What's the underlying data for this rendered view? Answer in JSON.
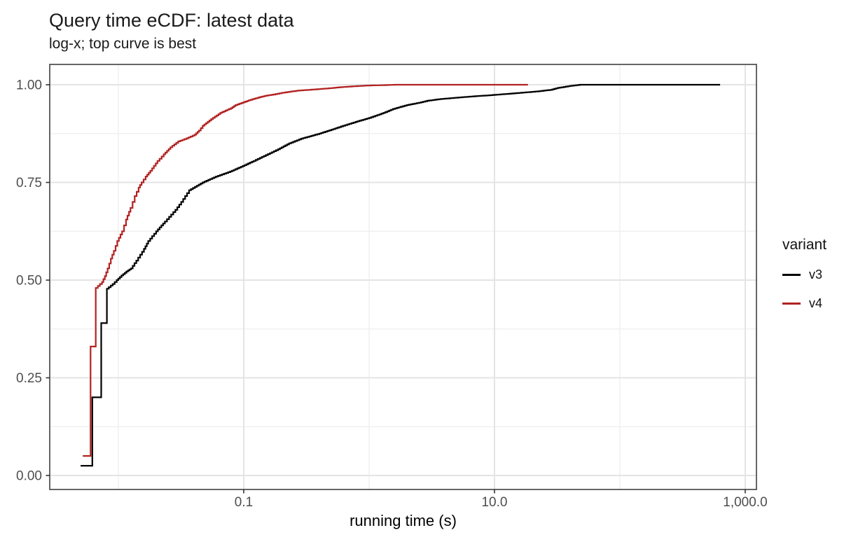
{
  "chart_data": {
    "type": "line",
    "subtype": "ecdf-step",
    "title": "Query time eCDF: latest data",
    "subtitle": "log-x; top curve is best",
    "xlabel": "running time (s)",
    "ylabel": "",
    "x_scale": "log10",
    "xlim": [
      0.002835,
      1228.9
    ],
    "ylim": [
      -0.0358,
      1.052
    ],
    "grid": "on",
    "x_ticks": [
      {
        "value": 0.1,
        "label": "0.1"
      },
      {
        "value": 10,
        "label": "10.0"
      },
      {
        "value": 1000,
        "label": "1,000.0"
      }
    ],
    "x_minor_gridlines": [
      0.01,
      1,
      100
    ],
    "y_ticks": [
      {
        "value": 0.0,
        "label": "0.00"
      },
      {
        "value": 0.25,
        "label": "0.25"
      },
      {
        "value": 0.5,
        "label": "0.50"
      },
      {
        "value": 0.75,
        "label": "0.75"
      },
      {
        "value": 1.0,
        "label": "1.00"
      }
    ],
    "y_minor_gridlines": [
      0.125,
      0.375,
      0.625,
      0.875
    ],
    "legend": {
      "title": "variant",
      "position": "right"
    },
    "series": [
      {
        "name": "v3",
        "color": "#000000",
        "points": [
          [
            0.005,
            0.025
          ],
          [
            0.0062,
            0.025
          ],
          [
            0.0062,
            0.2
          ],
          [
            0.0073,
            0.2
          ],
          [
            0.0073,
            0.39
          ],
          [
            0.0081,
            0.39
          ],
          [
            0.0081,
            0.478
          ],
          [
            0.009,
            0.49
          ],
          [
            0.0097,
            0.5
          ],
          [
            0.0106,
            0.512
          ],
          [
            0.0116,
            0.522
          ],
          [
            0.0126,
            0.53
          ],
          [
            0.0139,
            0.55
          ],
          [
            0.016,
            0.58
          ],
          [
            0.0173,
            0.6
          ],
          [
            0.02,
            0.625
          ],
          [
            0.0235,
            0.65
          ],
          [
            0.0285,
            0.68
          ],
          [
            0.0317,
            0.7
          ],
          [
            0.0366,
            0.73
          ],
          [
            0.047,
            0.75
          ],
          [
            0.06,
            0.765
          ],
          [
            0.078,
            0.778
          ],
          [
            0.095,
            0.79
          ],
          [
            0.12,
            0.805
          ],
          [
            0.15,
            0.82
          ],
          [
            0.188,
            0.835
          ],
          [
            0.23,
            0.85
          ],
          [
            0.287,
            0.862
          ],
          [
            0.4,
            0.875
          ],
          [
            0.5,
            0.885
          ],
          [
            0.62,
            0.895
          ],
          [
            0.78,
            0.905
          ],
          [
            1.0,
            0.915
          ],
          [
            1.3,
            0.928
          ],
          [
            1.55,
            0.938
          ],
          [
            2.0,
            0.948
          ],
          [
            2.5,
            0.954
          ],
          [
            2.9,
            0.959
          ],
          [
            3.6,
            0.963
          ],
          [
            4.6,
            0.966
          ],
          [
            6.5,
            0.97
          ],
          [
            9.0,
            0.973
          ],
          [
            13.0,
            0.977
          ],
          [
            17.0,
            0.98
          ],
          [
            22.0,
            0.983
          ],
          [
            28.0,
            0.987
          ],
          [
            32.0,
            0.992
          ],
          [
            40.0,
            0.997
          ],
          [
            48.0,
            1.0
          ],
          [
            630.0,
            1.0
          ]
        ]
      },
      {
        "name": "v4",
        "color": "#B22222",
        "points": [
          [
            0.0052,
            0.05
          ],
          [
            0.006,
            0.05
          ],
          [
            0.006,
            0.33
          ],
          [
            0.0066,
            0.33
          ],
          [
            0.0066,
            0.48
          ],
          [
            0.0074,
            0.495
          ],
          [
            0.0078,
            0.51
          ],
          [
            0.0082,
            0.53
          ],
          [
            0.0087,
            0.555
          ],
          [
            0.0092,
            0.575
          ],
          [
            0.0098,
            0.6
          ],
          [
            0.0107,
            0.625
          ],
          [
            0.0115,
            0.655
          ],
          [
            0.0125,
            0.685
          ],
          [
            0.0135,
            0.715
          ],
          [
            0.0145,
            0.737
          ],
          [
            0.0153,
            0.75
          ],
          [
            0.0165,
            0.765
          ],
          [
            0.018,
            0.78
          ],
          [
            0.0205,
            0.805
          ],
          [
            0.023,
            0.822
          ],
          [
            0.026,
            0.84
          ],
          [
            0.03,
            0.855
          ],
          [
            0.035,
            0.863
          ],
          [
            0.0406,
            0.872
          ],
          [
            0.044,
            0.883
          ],
          [
            0.047,
            0.895
          ],
          [
            0.055,
            0.912
          ],
          [
            0.065,
            0.928
          ],
          [
            0.079,
            0.94
          ],
          [
            0.086,
            0.948
          ],
          [
            0.103,
            0.957
          ],
          [
            0.117,
            0.963
          ],
          [
            0.133,
            0.968
          ],
          [
            0.15,
            0.972
          ],
          [
            0.172,
            0.975
          ],
          [
            0.2,
            0.979
          ],
          [
            0.23,
            0.982
          ],
          [
            0.27,
            0.985
          ],
          [
            0.33,
            0.987
          ],
          [
            0.4,
            0.989
          ],
          [
            0.48,
            0.991
          ],
          [
            0.6,
            0.994
          ],
          [
            0.75,
            0.996
          ],
          [
            0.95,
            0.998
          ],
          [
            1.3,
            0.999
          ],
          [
            1.6,
            1.0
          ],
          [
            18.5,
            1.0
          ]
        ]
      }
    ]
  },
  "style": {
    "panel_background": "#ffffff",
    "panel_border": "#555555",
    "grid_major": "#e4e4e4",
    "grid_minor": "#f0f0f0",
    "tick_mark": "#333333",
    "tick_label": "#4d4d4d",
    "text": "#1a1a1a",
    "line_width": 2.2
  }
}
